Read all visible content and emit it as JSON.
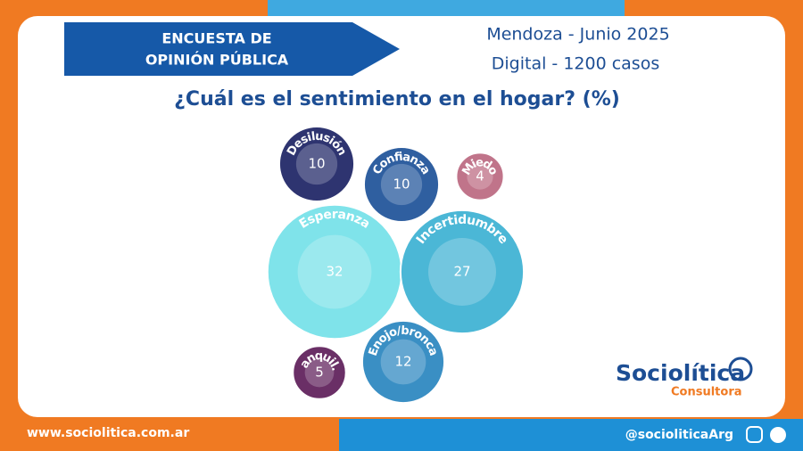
{
  "header": {
    "banner": [
      "ENCUESTA DE",
      "OPINIÓN PÚBLICA"
    ],
    "place_date": "Mendoza - Junio 2025",
    "sample": "Digital - 1200 casos"
  },
  "chart_data": {
    "type": "bubble",
    "title": "¿Cuál es el sentimiento en el hogar? (%)",
    "categories": [
      "Desilusión",
      "Confianza",
      "Miedo",
      "Esperanza",
      "Incertidumbre",
      "Enojo/bronca",
      "Tranquil..."
    ],
    "values": [
      10,
      10,
      4,
      32,
      27,
      12,
      5
    ],
    "colors": [
      "#2e3470",
      "#2f5fa0",
      "#c0748a",
      "#7fe3ea",
      "#4bb7d6",
      "#3a8fc4",
      "#6a2f66"
    ]
  },
  "logo": {
    "name": "Sociolítica",
    "sub": "Consultora"
  },
  "footer": {
    "website": "www.sociolitica.com.ar",
    "handle": "@socioliticaArg"
  }
}
